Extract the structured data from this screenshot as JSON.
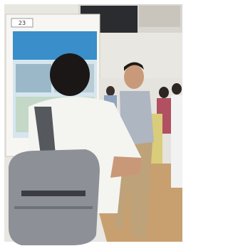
{
  "poster": {
    "number": "23"
  }
}
